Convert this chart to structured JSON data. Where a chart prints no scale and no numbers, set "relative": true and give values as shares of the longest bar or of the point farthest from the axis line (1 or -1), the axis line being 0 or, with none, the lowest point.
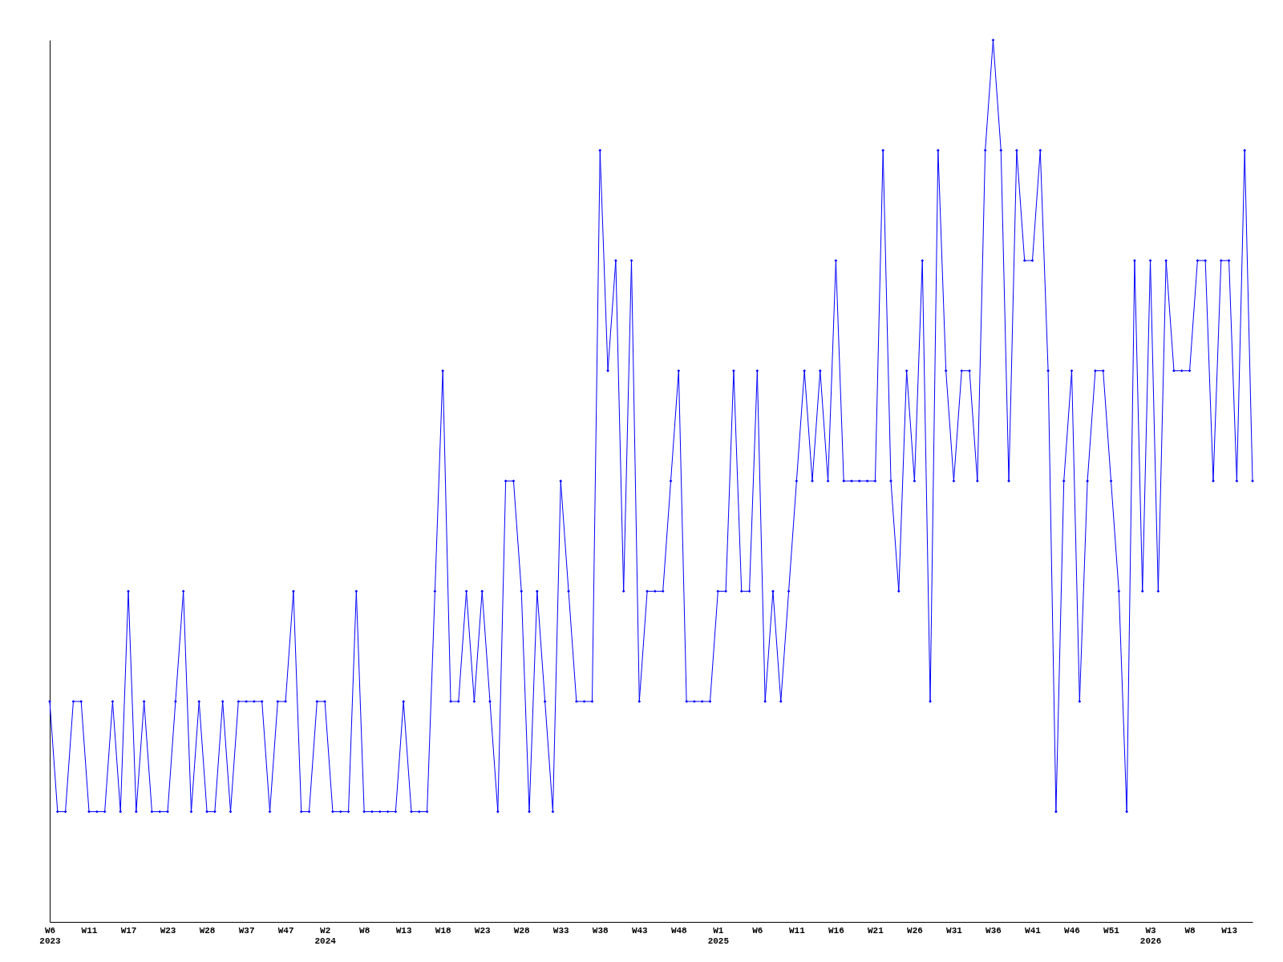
{
  "chart_data": {
    "type": "line",
    "relative": true,
    "marker": "diamond",
    "line_style": "solid",
    "grid": false,
    "legend": false,
    "tick_labels": "x",
    "categories": [
      "W6\n2023",
      null,
      null,
      null,
      null,
      "W11",
      null,
      null,
      null,
      null,
      "W17",
      null,
      null,
      null,
      null,
      "W23",
      null,
      null,
      null,
      null,
      "W28",
      null,
      null,
      null,
      null,
      "W37",
      null,
      null,
      null,
      null,
      "W47",
      null,
      null,
      null,
      null,
      "W2\n2024",
      null,
      null,
      null,
      null,
      "W8",
      null,
      null,
      null,
      null,
      "W13",
      null,
      null,
      null,
      null,
      "W18",
      null,
      null,
      null,
      null,
      "W23",
      null,
      null,
      null,
      null,
      "W28",
      null,
      null,
      null,
      null,
      "W33",
      null,
      null,
      null,
      null,
      "W38",
      null,
      null,
      null,
      null,
      "W43",
      null,
      null,
      null,
      null,
      "W48",
      null,
      null,
      null,
      null,
      "W1\n2025",
      null,
      null,
      null,
      null,
      "W6",
      null,
      null,
      null,
      null,
      "W11",
      null,
      null,
      null,
      null,
      "W16",
      null,
      null,
      null,
      null,
      "W21",
      null,
      null,
      null,
      null,
      "W26",
      null,
      null,
      null,
      null,
      "W31",
      null,
      null,
      null,
      null,
      "W36",
      null,
      null,
      null,
      null,
      "W41",
      null,
      null,
      null,
      null,
      "W46",
      null,
      null,
      null,
      null,
      "W51",
      null,
      null,
      null,
      null,
      "W3\n2026",
      null,
      null,
      null,
      null,
      "W8",
      null,
      null,
      null,
      null,
      "W13",
      null,
      null,
      null
    ],
    "series": [
      {
        "color": "#0000ff",
        "values": [
          0.25,
          0.125,
          0.125,
          0.25,
          0.25,
          0.125,
          0.125,
          0.125,
          0.25,
          0.125,
          0.375,
          0.125,
          0.25,
          0.125,
          0.125,
          0.125,
          0.25,
          0.375,
          0.125,
          0.25,
          0.125,
          0.125,
          0.25,
          0.125,
          0.25,
          0.25,
          0.25,
          0.25,
          0.125,
          0.25,
          0.25,
          0.375,
          0.125,
          0.125,
          0.25,
          0.25,
          0.125,
          0.125,
          0.125,
          0.375,
          0.125,
          0.125,
          0.125,
          0.125,
          0.125,
          0.25,
          0.125,
          0.125,
          0.125,
          0.375,
          0.625,
          0.25,
          0.25,
          0.375,
          0.25,
          0.375,
          0.25,
          0.125,
          0.5,
          0.5,
          0.375,
          0.125,
          0.375,
          0.25,
          0.125,
          0.5,
          0.375,
          0.25,
          0.25,
          0.25,
          0.875,
          0.625,
          0.75,
          0.375,
          0.75,
          0.25,
          0.375,
          0.375,
          0.375,
          0.5,
          0.625,
          0.25,
          0.25,
          0.25,
          0.25,
          0.375,
          0.375,
          0.625,
          0.375,
          0.375,
          0.625,
          0.25,
          0.375,
          0.25,
          0.375,
          0.5,
          0.625,
          0.5,
          0.625,
          0.5,
          0.75,
          0.5,
          0.5,
          0.5,
          0.5,
          0.5,
          0.875,
          0.5,
          0.375,
          0.625,
          0.5,
          0.75,
          0.25,
          0.875,
          0.625,
          0.5,
          0.625,
          0.625,
          0.5,
          0.875,
          1,
          0.875,
          0.5,
          0.875,
          0.75,
          0.75,
          0.875,
          0.625,
          0.125,
          0.5,
          0.625,
          0.25,
          0.5,
          0.625,
          0.625,
          0.5,
          0.375,
          0.125,
          0.75,
          0.375,
          0.75,
          0.375,
          0.75,
          0.625,
          0.625,
          0.625,
          0.75,
          0.75,
          0.5,
          0.75,
          0.75,
          0.5,
          0.875,
          0.5
        ]
      }
    ]
  }
}
